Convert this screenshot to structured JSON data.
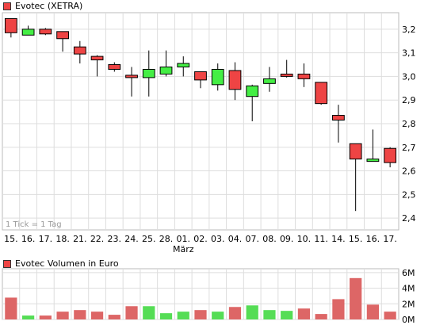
{
  "colors": {
    "up": "#44ee44",
    "down": "#ee4444",
    "volume_up": "#55dd55",
    "volume_down": "#dd6666",
    "grid": "#dddddd"
  },
  "price_panel": {
    "legend": "Evotec (XETRA)",
    "note": "1 Tick = 1 Tag"
  },
  "volume_panel": {
    "legend": "Evotec Volumen in Euro"
  },
  "chart_data": [
    {
      "type": "candlestick",
      "title": "Evotec (XETRA)",
      "categories": [
        "15.",
        "16.",
        "17.",
        "18.",
        "21.",
        "22.",
        "23.",
        "24.",
        "25.",
        "28.",
        "01.",
        "02.",
        "03.",
        "04.",
        "07.",
        "08.",
        "09.",
        "10.",
        "11.",
        "14.",
        "15.",
        "16.",
        "17."
      ],
      "x_sublabel": {
        "at": "01.",
        "text": "März"
      },
      "ylim": [
        2.35,
        3.27
      ],
      "yticks": [
        2.4,
        2.5,
        2.6,
        2.7,
        2.8,
        2.9,
        3.0,
        3.1,
        3.2
      ],
      "ytick_labels": [
        "2,4",
        "2,5",
        "2,6",
        "2,7",
        "2,8",
        "2,9",
        "3,0",
        "3,1",
        "3,2"
      ],
      "grid": true,
      "candles": [
        {
          "open": 3.245,
          "close": 3.185,
          "high": 3.245,
          "low": 3.165
        },
        {
          "open": 3.175,
          "close": 3.2,
          "high": 3.215,
          "low": 3.175
        },
        {
          "open": 3.2,
          "close": 3.18,
          "high": 3.205,
          "low": 3.175
        },
        {
          "open": 3.19,
          "close": 3.16,
          "high": 3.19,
          "low": 3.105
        },
        {
          "open": 3.125,
          "close": 3.095,
          "high": 3.15,
          "low": 3.055
        },
        {
          "open": 3.085,
          "close": 3.07,
          "high": 3.09,
          "low": 3.0
        },
        {
          "open": 3.05,
          "close": 3.03,
          "high": 3.06,
          "low": 3.02
        },
        {
          "open": 3.005,
          "close": 2.995,
          "high": 3.04,
          "low": 2.915
        },
        {
          "open": 2.995,
          "close": 3.03,
          "high": 3.11,
          "low": 2.915
        },
        {
          "open": 3.01,
          "close": 3.04,
          "high": 3.11,
          "low": 3.0
        },
        {
          "open": 3.04,
          "close": 3.055,
          "high": 3.085,
          "low": 3.0
        },
        {
          "open": 3.02,
          "close": 2.985,
          "high": 3.02,
          "low": 2.95
        },
        {
          "open": 2.965,
          "close": 3.03,
          "high": 3.055,
          "low": 2.94
        },
        {
          "open": 3.025,
          "close": 2.945,
          "high": 3.06,
          "low": 2.9
        },
        {
          "open": 2.915,
          "close": 2.96,
          "high": 2.965,
          "low": 2.81
        },
        {
          "open": 2.97,
          "close": 2.99,
          "high": 3.04,
          "low": 2.935
        },
        {
          "open": 3.01,
          "close": 3.0,
          "high": 3.07,
          "low": 2.995
        },
        {
          "open": 3.01,
          "close": 2.99,
          "high": 3.055,
          "low": 2.955
        },
        {
          "open": 2.975,
          "close": 2.885,
          "high": 2.975,
          "low": 2.88
        },
        {
          "open": 2.835,
          "close": 2.815,
          "high": 2.88,
          "low": 2.72
        },
        {
          "open": 2.715,
          "close": 2.65,
          "high": 2.715,
          "low": 2.43
        },
        {
          "open": 2.64,
          "close": 2.65,
          "high": 2.775,
          "low": 2.64
        },
        {
          "open": 2.695,
          "close": 2.635,
          "high": 2.7,
          "low": 2.615
        }
      ]
    },
    {
      "type": "bar",
      "title": "Evotec Volumen in Euro",
      "categories": [
        "15.",
        "16.",
        "17.",
        "18.",
        "21.",
        "22.",
        "23.",
        "24.",
        "25.",
        "28.",
        "01.",
        "02.",
        "03.",
        "04.",
        "07.",
        "08.",
        "09.",
        "10.",
        "11.",
        "14.",
        "15.",
        "16.",
        "17."
      ],
      "ylim": [
        0,
        6.5
      ],
      "yticks": [
        0,
        2,
        4,
        6
      ],
      "ytick_labels": [
        "0M",
        "2M",
        "4M",
        "6M"
      ],
      "unit": "Mio. Euro",
      "values": [
        2.8,
        0.5,
        0.5,
        1.0,
        1.2,
        1.0,
        0.6,
        1.7,
        1.7,
        0.8,
        1.0,
        1.2,
        1.0,
        1.6,
        1.8,
        1.2,
        1.1,
        1.4,
        0.7,
        2.6,
        5.3,
        1.9,
        1.0
      ],
      "direction": [
        "down",
        "up",
        "down",
        "down",
        "down",
        "down",
        "down",
        "down",
        "up",
        "up",
        "up",
        "down",
        "up",
        "down",
        "up",
        "up",
        "up",
        "down",
        "down",
        "down",
        "down",
        "down",
        "down"
      ]
    }
  ]
}
